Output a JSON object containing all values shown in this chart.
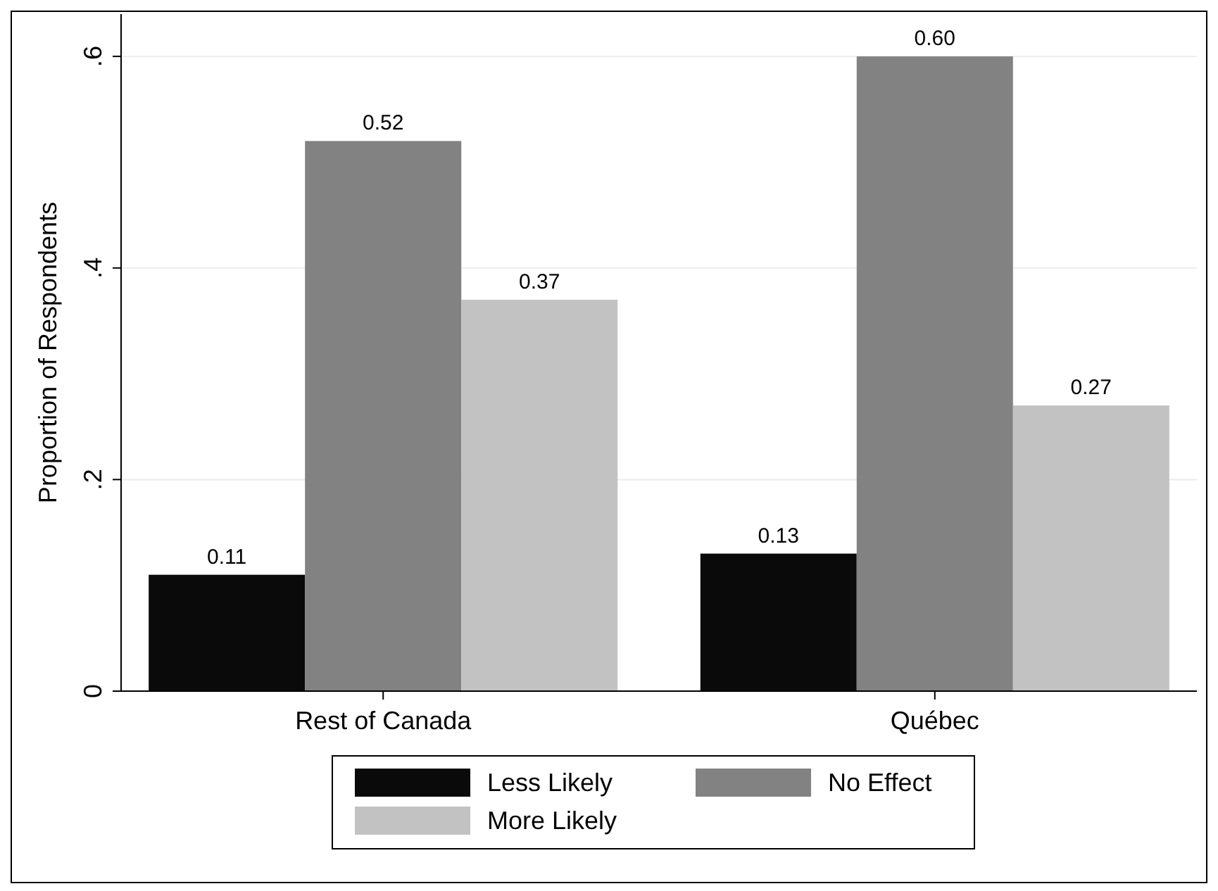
{
  "chart_data": {
    "type": "bar",
    "ylabel": "Proportion of Respondents",
    "categories": [
      "Rest of Canada",
      "Québec"
    ],
    "series": [
      {
        "name": "Less Likely",
        "color": "#0a0a0a",
        "values": [
          0.11,
          0.13
        ],
        "value_labels": [
          "0.11",
          "0.13"
        ]
      },
      {
        "name": "No Effect",
        "color": "#828282",
        "values": [
          0.52,
          0.6
        ],
        "value_labels": [
          "0.52",
          "0.60"
        ]
      },
      {
        "name": "More Likely",
        "color": "#c2c2c2",
        "values": [
          0.37,
          0.27
        ],
        "value_labels": [
          "0.37",
          "0.27"
        ]
      }
    ],
    "ylim": [
      0,
      0.64
    ],
    "yticks": [
      0,
      {
        "value": 0.2,
        "label": ".2"
      },
      {
        "value": 0.4,
        "label": ".4"
      },
      {
        "value": 0.6,
        "label": ".6"
      }
    ],
    "grid": "y",
    "legend": "bottom"
  }
}
